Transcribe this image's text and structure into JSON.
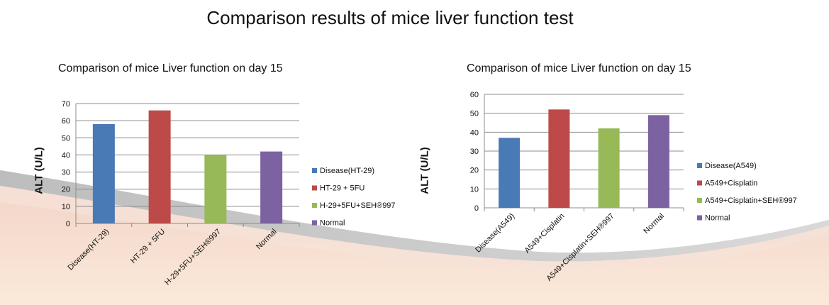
{
  "page": {
    "title": "Comparison results of mice liver function test"
  },
  "colors": {
    "blue": "#4a7ab5",
    "red": "#bd4a48",
    "green": "#97b957",
    "purple": "#7d62a1",
    "grid": "#8c8c8c"
  },
  "chart_data": [
    {
      "type": "bar",
      "title": "Comparison of mice Liver function on day 15",
      "ylabel": "ALT (U/L)",
      "xlabel": "",
      "ylim": [
        0,
        70
      ],
      "yticks": [
        0,
        10,
        20,
        30,
        40,
        50,
        60,
        70
      ],
      "categories": [
        "Disease(HT-29)",
        "HT-29 + 5FU",
        "H-29+5FU+SEH®997",
        "Normal"
      ],
      "values": [
        58,
        66,
        40,
        42
      ],
      "legend": [
        "Disease(HT-29)",
        "HT-29 + 5FU",
        "H-29+5FU+SEH®997",
        "Normal"
      ],
      "legend_position": "right",
      "grid": true
    },
    {
      "type": "bar",
      "title": "Comparison of mice Liver function on day 15",
      "ylabel": "ALT (U/L)",
      "xlabel": "",
      "ylim": [
        0,
        60
      ],
      "yticks": [
        0,
        10,
        20,
        30,
        40,
        50,
        60
      ],
      "categories": [
        "Disease(A549)",
        "A549+Cisplatin",
        "A549+Cisplatin+SEH®997",
        "Normal"
      ],
      "values": [
        37,
        52,
        42,
        49
      ],
      "legend": [
        "Disease(A549)",
        "A549+Cisplatin",
        "A549+Cisplatin+SEH®997",
        "Normal"
      ],
      "legend_position": "right",
      "grid": true
    }
  ]
}
